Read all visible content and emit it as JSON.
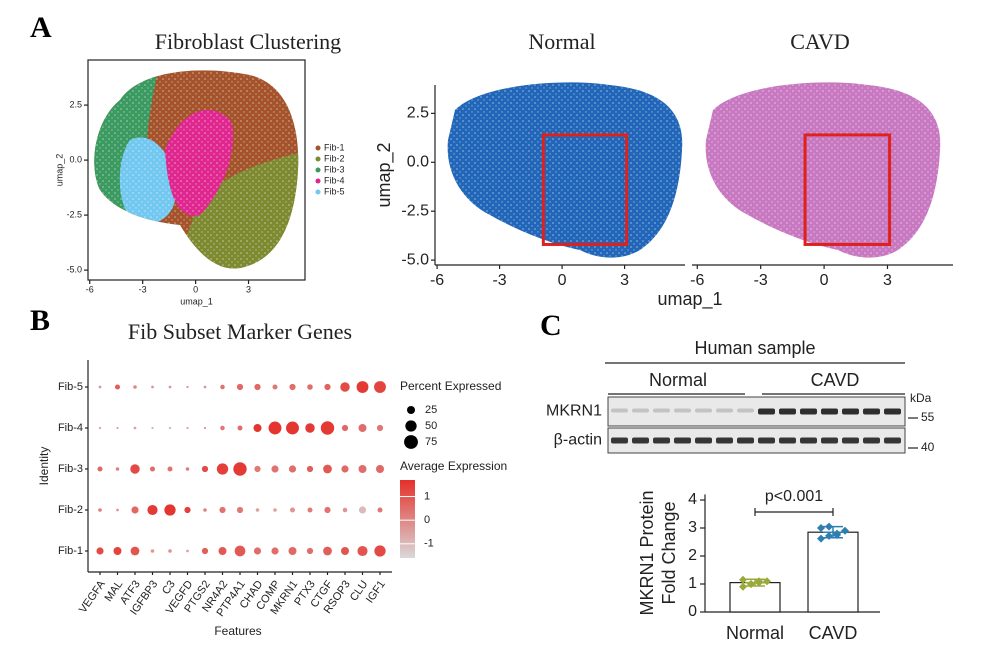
{
  "panels": [
    "A",
    "B",
    "C"
  ],
  "chart_data": [
    {
      "type": "umap",
      "title": "Fibroblast Clustering",
      "xlabel": "umap_1",
      "ylabel": "umap_2",
      "xlim": [
        -6.1,
        6.2
      ],
      "xticks": [
        -6,
        -3,
        0,
        3
      ],
      "ylim": [
        -5.45,
        4.55
      ],
      "yticks": [
        {
          "value": 2.5,
          "label": "2.5"
        },
        {
          "value": 0,
          "label": "0.0"
        },
        {
          "value": -2.5,
          "label": "-2.5"
        },
        {
          "value": -5,
          "label": "-5.0"
        }
      ],
      "legend": [
        {
          "name": "Fib-1",
          "color": "#a4532b"
        },
        {
          "name": "Fib-2",
          "color": "#7d8a2f"
        },
        {
          "name": "Fib-3",
          "color": "#3a9a60"
        },
        {
          "name": "Fib-4",
          "color": "#e0268f"
        },
        {
          "name": "Fib-5",
          "color": "#72c8f0"
        }
      ]
    },
    {
      "type": "umap",
      "title": "Normal",
      "ylabel": "umap_2",
      "color": "#2166b8",
      "xlim": [
        -6.1,
        5.9
      ],
      "xticks": [
        -6,
        -3,
        0,
        3
      ],
      "ylim": [
        -5.25,
        3.95
      ],
      "yticks": [
        {
          "value": 2.5,
          "label": "2.5"
        },
        {
          "value": 0,
          "label": "0.0"
        },
        {
          "value": -2.5,
          "label": "-2.5"
        },
        {
          "value": -5,
          "label": "-5.0"
        }
      ],
      "highlight": {
        "x": [
          -0.9,
          3.1
        ],
        "y": [
          -4.2,
          1.4
        ],
        "color": "#e0201b"
      }
    },
    {
      "type": "umap",
      "title": "CAVD",
      "xlabel": "umap_1",
      "color": "#c878c0",
      "xlim": [
        -6.25,
        6.1
      ],
      "xticks": [
        -6,
        -3,
        0,
        3
      ],
      "ylim": [
        -5.25,
        3.95
      ],
      "highlight": {
        "x": [
          -0.9,
          3.1
        ],
        "y": [
          -4.2,
          1.4
        ],
        "color": "#e0201b"
      }
    },
    {
      "type": "dot",
      "title": "Fib Subset Marker Genes",
      "xlabel": "Features",
      "ylabel": "Identity",
      "categories": [
        "VEGFA",
        "MAL",
        "ATF3",
        "IGFBP3",
        "C3",
        "VEGFD",
        "PTGS2",
        "NR4A2",
        "PTP4A1",
        "CHAD",
        "COMP",
        "MKRN1",
        "PTX3",
        "CTGF",
        "RSOP3",
        "CLU",
        "IGF1"
      ],
      "series": [
        {
          "name": "Fib-1",
          "percent": [
            20,
            25,
            30,
            5,
            5,
            3,
            15,
            25,
            45,
            20,
            20,
            25,
            15,
            30,
            25,
            40,
            50
          ],
          "expression": [
            1.2,
            1.3,
            1.0,
            -0.3,
            -0.2,
            -0.5,
            0.8,
            0.9,
            0.9,
            0.5,
            0.5,
            0.6,
            0.5,
            0.8,
            1.0,
            1.0,
            1.2
          ]
        },
        {
          "name": "Fib-2",
          "percent": [
            5,
            3,
            20,
            40,
            50,
            15,
            5,
            15,
            15,
            5,
            5,
            10,
            10,
            15,
            8,
            20,
            10
          ],
          "expression": [
            0.2,
            -0.3,
            0.6,
            1.5,
            1.6,
            1.4,
            0.1,
            0.4,
            0.3,
            -0.5,
            -0.5,
            -0.3,
            0.2,
            0.4,
            -0.3,
            -1.0,
            0.3
          ]
        },
        {
          "name": "Fib-3",
          "percent": [
            10,
            5,
            35,
            10,
            10,
            5,
            15,
            50,
            70,
            15,
            20,
            20,
            15,
            30,
            20,
            25,
            25
          ],
          "expression": [
            0.6,
            0.1,
            1.2,
            0.5,
            0.4,
            0.2,
            1.2,
            1.4,
            1.5,
            0.3,
            0.4,
            0.5,
            0.8,
            0.9,
            0.6,
            0.5,
            0.6
          ]
        },
        {
          "name": "Fib-4",
          "percent": [
            2,
            2,
            3,
            2,
            2,
            2,
            2,
            8,
            10,
            25,
            65,
            65,
            35,
            70,
            15,
            25,
            15
          ],
          "expression": [
            -0.5,
            -0.5,
            -0.5,
            -0.8,
            -0.8,
            -0.5,
            -0.3,
            0.3,
            0.5,
            1.6,
            1.6,
            1.6,
            1.5,
            1.5,
            0.6,
            0.5,
            0.3
          ]
        },
        {
          "name": "Fib-5",
          "percent": [
            3,
            10,
            5,
            3,
            3,
            2,
            3,
            8,
            15,
            15,
            10,
            15,
            12,
            15,
            35,
            55,
            55
          ],
          "expression": [
            -0.3,
            0.8,
            0.0,
            -0.3,
            -0.3,
            -0.2,
            -0.3,
            0.4,
            0.6,
            0.6,
            0.3,
            0.5,
            0.5,
            0.7,
            1.2,
            1.5,
            1.3
          ]
        }
      ],
      "size_title": "Percent Expressed",
      "size_ticks": [
        25,
        50,
        75
      ],
      "color_title": "Average Expression",
      "colorlim": [
        -1.6,
        1.7
      ],
      "color_ticks": [
        1,
        0,
        -1
      ],
      "color_range": [
        "#d9d9d9",
        "#e5302a"
      ]
    },
    {
      "type": "blot",
      "title": "Human sample",
      "groups": [
        "Normal",
        "CAVD"
      ],
      "rows": [
        "MKRN1",
        "β-actin"
      ],
      "unit": "kDa",
      "markers": [
        55,
        40
      ]
    },
    {
      "type": "bar",
      "categories": [
        "Normal",
        "CAVD"
      ],
      "values": [
        1.05,
        2.85
      ],
      "errors": [
        0.12,
        0.2
      ],
      "points": [
        [
          0.9,
          1.0,
          1.05,
          1.1,
          1.15,
          1.0,
          1.1
        ],
        [
          2.62,
          2.72,
          2.8,
          2.9,
          3.0,
          3.05,
          2.75
        ]
      ],
      "colors": [
        "#9aaa3a",
        "#2e7fb0"
      ],
      "ylabel": [
        "MKRN1 Protein",
        "Fold Change"
      ],
      "ylim": [
        0,
        4.2
      ],
      "yticks": [
        0,
        1,
        2,
        3,
        4
      ],
      "annotation": "p<0.001"
    }
  ]
}
